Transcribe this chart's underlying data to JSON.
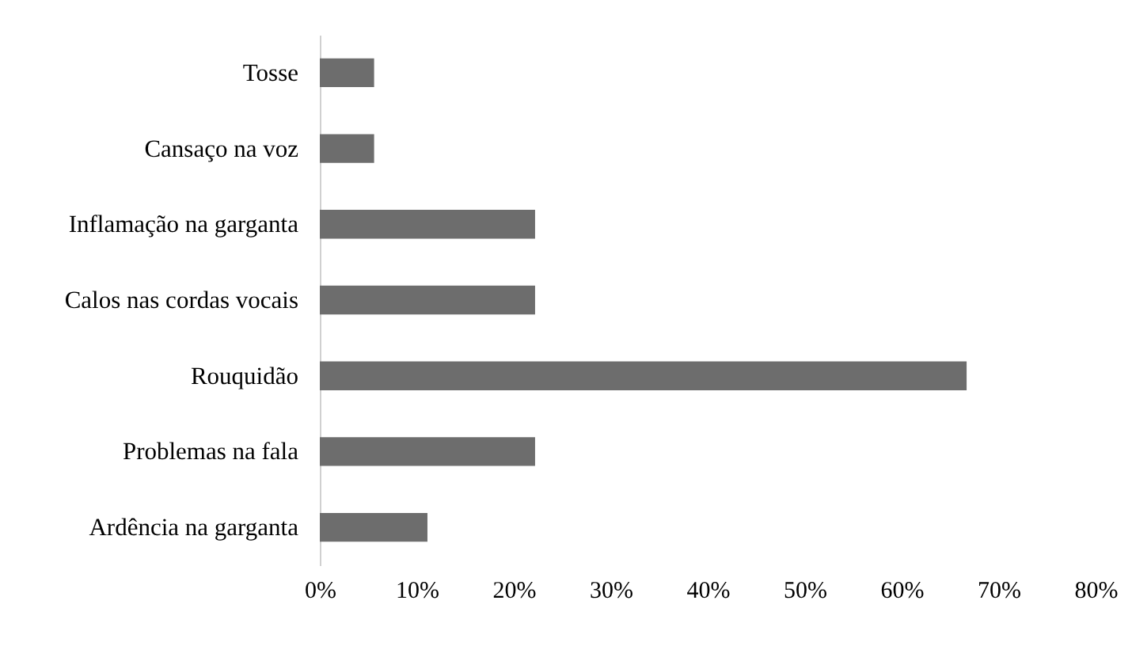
{
  "chart_data": {
    "type": "bar",
    "orientation": "horizontal",
    "categories": [
      "Tosse",
      "Cansaço na voz",
      "Inflamação na garganta",
      "Calos nas cordas vocais",
      "Rouquidão",
      "Problemas na fala",
      "Ardência na garganta"
    ],
    "values": [
      5.6,
      5.6,
      22.2,
      22.2,
      66.7,
      22.2,
      11.1
    ],
    "color": "#6d6d6d",
    "xlim": [
      0,
      80
    ],
    "xticks": [
      {
        "value": 0,
        "label": "0%"
      },
      {
        "value": 10,
        "label": "10%"
      },
      {
        "value": 20,
        "label": "20%"
      },
      {
        "value": 30,
        "label": "30%"
      },
      {
        "value": 40,
        "label": "40%"
      },
      {
        "value": 50,
        "label": "50%"
      },
      {
        "value": 60,
        "label": "60%"
      },
      {
        "value": 70,
        "label": "70%"
      },
      {
        "value": 80,
        "label": "80%"
      }
    ],
    "grid": false
  }
}
